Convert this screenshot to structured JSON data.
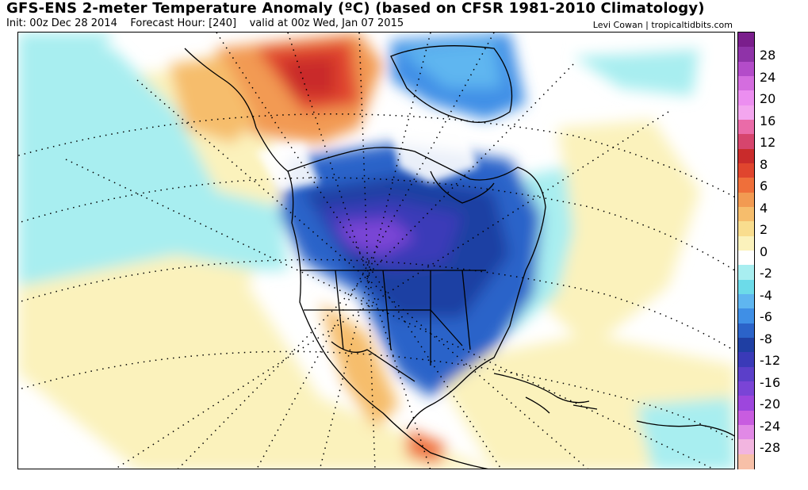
{
  "header": {
    "title": "GFS-ENS 2-meter Temperature Anomaly (ºC) (based on CFSR 1981-2010 Climatology)",
    "init": "Init: 00z Dec 28 2014",
    "forecast_hour": "Forecast Hour: [240]",
    "valid": "valid at 00z Wed, Jan 07 2015",
    "credit": "Levi Cowan | tropicaltidbits.com"
  },
  "colorbar": {
    "colors": [
      "#7a1e8c",
      "#8f33a8",
      "#b34cc9",
      "#d46ddf",
      "#ec8ef0",
      "#f3a6ef",
      "#ea6ba8",
      "#d6456d",
      "#c92b2b",
      "#e0452e",
      "#ef6f3a",
      "#f29a52",
      "#f6bd6c",
      "#f9dd8e",
      "#fbf2bc",
      "#ffffff",
      "#a8eef0",
      "#6cdbe9",
      "#5fb6f0",
      "#3f8fe6",
      "#2b63c9",
      "#1f3fa3",
      "#3a3ab8",
      "#5b3fc9",
      "#7a44d6",
      "#9d46dd",
      "#c85ce0",
      "#e189e6",
      "#f2b5e0",
      "#f7c0a8"
    ],
    "labels": [
      "28",
      "24",
      "20",
      "16",
      "12",
      "8",
      "6",
      "4",
      "2",
      "0",
      "-2",
      "-4",
      "-6",
      "-8",
      "-12",
      "-16",
      "-20",
      "-24",
      "-28"
    ]
  }
}
